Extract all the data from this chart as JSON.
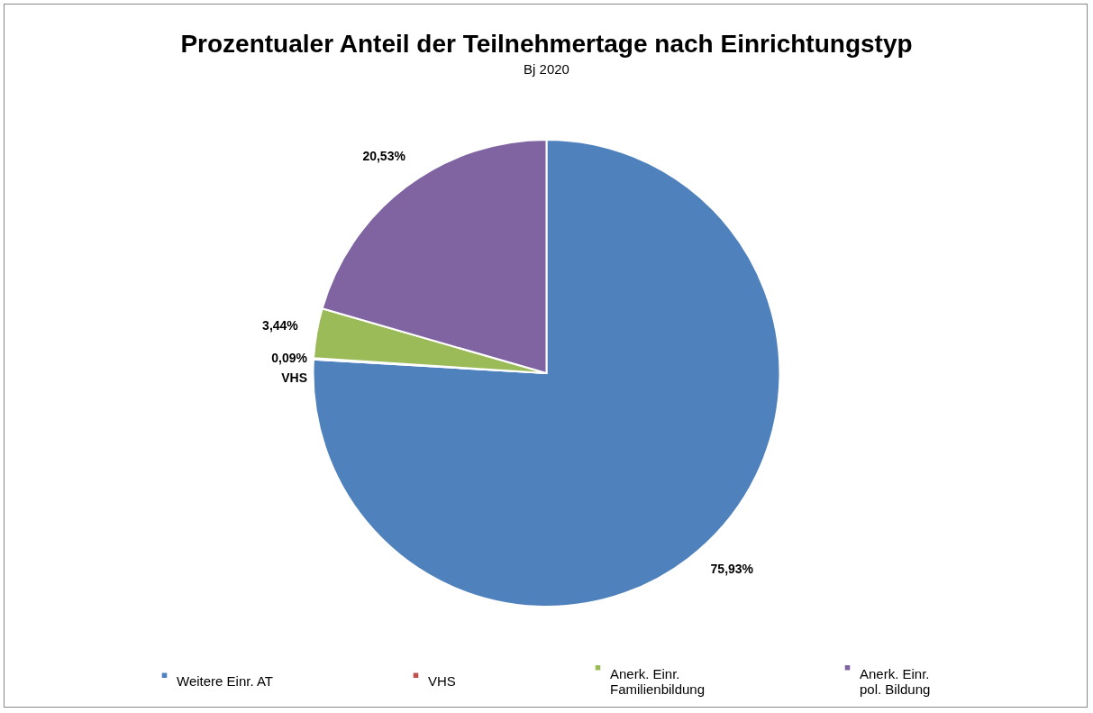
{
  "chart_data": {
    "type": "pie",
    "title": "Prozentualer Anteil der Teilnehmertage nach Einrichtungstyp",
    "subtitle": "Bj 2020",
    "categories": [
      "Weitere Einr. AT",
      "VHS",
      "Anerk. Einr. Familienbildung",
      "Anerk. Einr. pol. Bildung"
    ],
    "values": [
      75.93,
      0.09,
      3.44,
      20.53
    ],
    "colors": [
      "#4f81bd",
      "#c0504d",
      "#9bbb59",
      "#8064a2"
    ],
    "value_labels": [
      "75,93%",
      "0,09%\nVHS",
      "3,44%",
      "20,53%"
    ],
    "legend": "bottom"
  }
}
